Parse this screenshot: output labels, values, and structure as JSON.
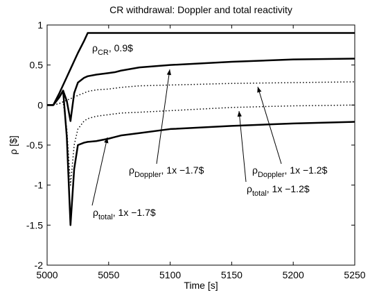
{
  "chart_data": {
    "type": "line",
    "title": "CR withdrawal: Doppler and total reactivity",
    "xlabel": "Time [s]",
    "ylabel": "ρ [$]",
    "x": [
      5000,
      5005,
      5010,
      5013,
      5016,
      5019,
      5022,
      5025,
      5030,
      5033,
      5040,
      5050,
      5055,
      5060,
      5075,
      5100,
      5150,
      5200,
      5250
    ],
    "series": [
      {
        "color": "#000000",
        "style": "solid",
        "values": [
          0,
          0,
          0.15,
          0.25,
          0.35,
          0.45,
          0.55,
          0.65,
          0.8,
          0.9,
          0.9,
          0.9,
          0.9,
          0.9,
          0.9,
          0.9,
          0.9,
          0.9,
          0.9
        ]
      },
      {
        "color": "#000000",
        "style": "solid",
        "values": [
          0,
          0,
          0.1,
          0.18,
          0.05,
          -0.2,
          0.15,
          0.28,
          0.34,
          0.36,
          0.38,
          0.4,
          0.41,
          0.43,
          0.47,
          0.5,
          0.54,
          0.57,
          0.58
        ]
      },
      {
        "color": "#000000",
        "style": "solid",
        "values": [
          0,
          0,
          0.1,
          0.18,
          -0.4,
          -1.5,
          -0.8,
          -0.5,
          -0.47,
          -0.46,
          -0.45,
          -0.42,
          -0.4,
          -0.38,
          -0.35,
          -0.3,
          -0.26,
          -0.23,
          -0.21
        ]
      },
      {
        "color": "#000000",
        "style": "dotted",
        "values": [
          0,
          0,
          0.02,
          0.04,
          0.06,
          0.08,
          0.1,
          0.12,
          0.15,
          0.17,
          0.19,
          0.2,
          0.21,
          0.22,
          0.24,
          0.25,
          0.27,
          0.28,
          0.29
        ]
      },
      {
        "color": "#000000",
        "style": "dotted",
        "values": [
          0,
          0,
          0.02,
          0.04,
          -0.3,
          -1.0,
          -0.5,
          -0.3,
          -0.2,
          -0.17,
          -0.14,
          -0.12,
          -0.11,
          -0.1,
          -0.09,
          -0.07,
          -0.03,
          -0.01,
          0
        ]
      }
    ],
    "annotations": [
      {
        "symbol": "ρ",
        "sub": "CR",
        "text": ", 0.9$"
      },
      {
        "symbol": "ρ",
        "sub": "Doppler",
        "text": ", 1x −1.7$"
      },
      {
        "symbol": "ρ",
        "sub": "Doppler",
        "text": ", 1x −1.2$"
      },
      {
        "symbol": "ρ",
        "sub": "total",
        "text": ", 1x −1.2$"
      },
      {
        "symbol": "ρ",
        "sub": "total",
        "text": ", 1x −1.7$"
      }
    ],
    "xlim": [
      5000,
      5250
    ],
    "xticks": [
      5000,
      5050,
      5100,
      5150,
      5200,
      5250
    ],
    "ylim": [
      -2,
      1
    ],
    "yticks": [
      -2,
      -1.5,
      -1,
      -0.5,
      0,
      0.5,
      1
    ],
    "grid": false
  }
}
